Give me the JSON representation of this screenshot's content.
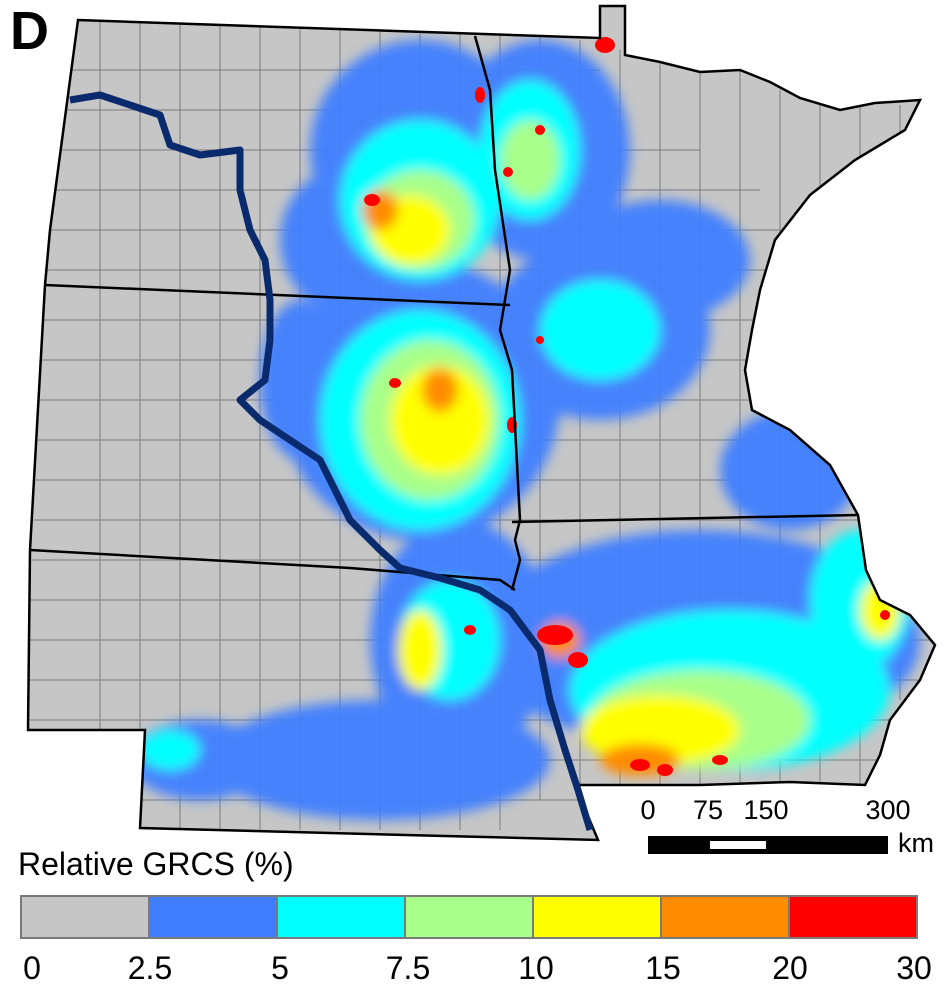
{
  "panel_label": "D",
  "legend": {
    "title": "Relative GRCS (%)",
    "colors": [
      "#c6c6c6",
      "#3f7fff",
      "#00ffff",
      "#a8ff8a",
      "#ffff00",
      "#ff8c00",
      "#ff0000"
    ],
    "ticks": [
      "0",
      "2.5",
      "5",
      "7.5",
      "10",
      "15",
      "20",
      "30"
    ]
  },
  "scale_bar": {
    "labels": [
      "0",
      "75",
      "150",
      "300"
    ],
    "unit": "km"
  },
  "colors": {
    "background_land": "#c6c6c6",
    "state_border": "#000000",
    "county_border": "#5a5a5a",
    "river": "#0a2a6e"
  }
}
